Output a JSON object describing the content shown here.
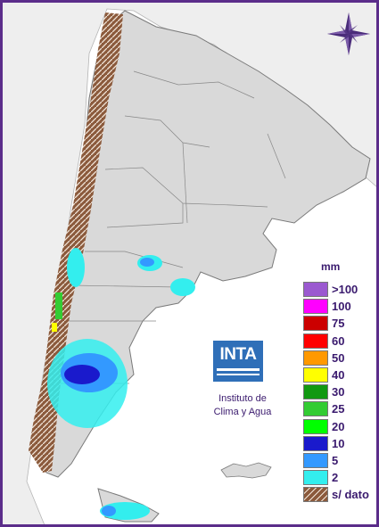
{
  "map": {
    "region": "Argentina",
    "frame_color": "#5b2d8a",
    "water_color": "#ffffff",
    "land_color": "#d9d9d9",
    "neighbor_color": "#eeeeee"
  },
  "compass": {
    "icon": "compass-rose-icon",
    "color": "#4a2c7a"
  },
  "legend": {
    "title": "mm",
    "items": [
      {
        "label": ">100",
        "color": "#9b59d0"
      },
      {
        "label": "100",
        "color": "#ff00ff"
      },
      {
        "label": "75",
        "color": "#cc0000"
      },
      {
        "label": "60",
        "color": "#ff0000"
      },
      {
        "label": "50",
        "color": "#ff9900"
      },
      {
        "label": "40",
        "color": "#ffff00"
      },
      {
        "label": "30",
        "color": "#119911"
      },
      {
        "label": "25",
        "color": "#33cc33"
      },
      {
        "label": "20",
        "color": "#00ff00"
      },
      {
        "label": "10",
        "color": "#1a1acc"
      },
      {
        "label": "5",
        "color": "#3399ff"
      },
      {
        "label": "2",
        "color": "#33eeee"
      },
      {
        "label": "s/ dato",
        "color": "#8b5a3c",
        "pattern": "hatched"
      }
    ]
  },
  "logo": {
    "text": "INTA",
    "color": "#2f6fb8"
  },
  "institute": {
    "line1": "Instituto de",
    "line2": "Clima y Agua"
  }
}
